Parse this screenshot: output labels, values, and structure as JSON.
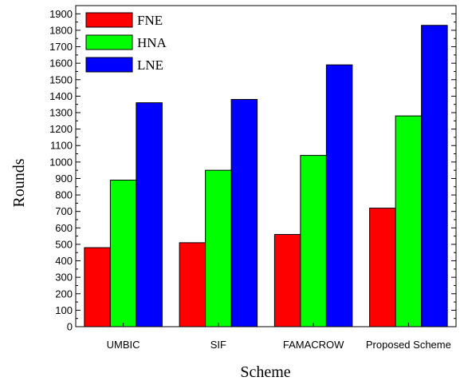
{
  "chart_data": {
    "type": "bar",
    "xlabel": "Scheme",
    "ylabel": "Rounds",
    "categories": [
      "UMBIC",
      "SIF",
      "FAMACROW",
      "Proposed Scheme"
    ],
    "series": [
      {
        "name": "FNE",
        "color": "#ff0000",
        "values": [
          480,
          510,
          560,
          720
        ]
      },
      {
        "name": "HNA",
        "color": "#00ff00",
        "values": [
          890,
          950,
          1040,
          1280
        ]
      },
      {
        "name": "LNE",
        "color": "#0000ff",
        "values": [
          1360,
          1380,
          1590,
          1830
        ]
      }
    ],
    "ylim": [
      0,
      1950
    ],
    "yticks": [
      0,
      100,
      200,
      300,
      400,
      500,
      600,
      700,
      800,
      900,
      1000,
      1100,
      1200,
      1300,
      1400,
      1500,
      1600,
      1700,
      1800,
      1900
    ],
    "grid": false,
    "legend_position": "top-left"
  }
}
